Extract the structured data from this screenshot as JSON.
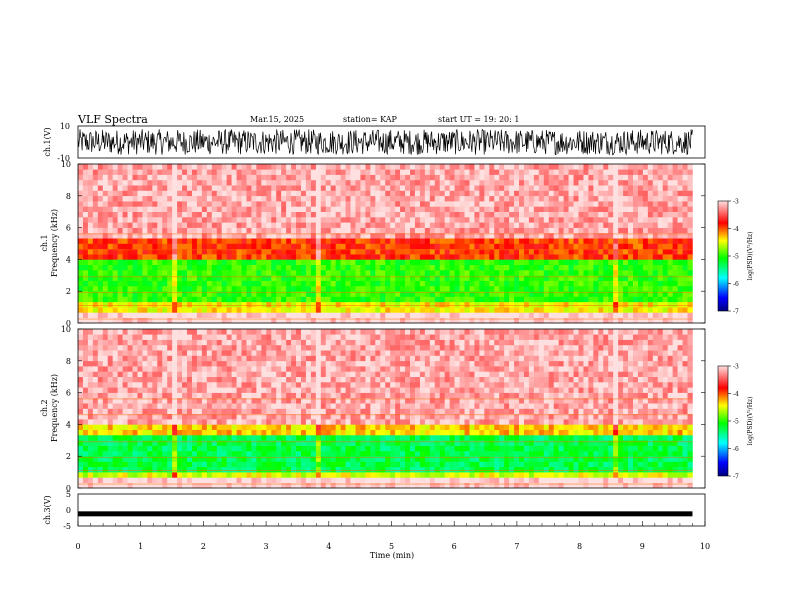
{
  "header": {
    "title": "VLF Spectra",
    "date": "Mar.15, 2025",
    "station": "station= KAP",
    "start": "start  UT  =   19: 20: 1"
  },
  "chart_data": [
    {
      "type": "line",
      "panel": "ch1-waveform",
      "ylabel": "ch.1(V)",
      "ylim": [
        -10,
        10
      ],
      "yticks": [
        "10",
        "-10"
      ],
      "xlim": [
        0,
        10
      ],
      "note_values": "dense black oscillating trace filling roughly -8 to +8 V across 0-9.8 min"
    },
    {
      "type": "heatmap",
      "panel": "ch1-spectrogram",
      "ylabel": "Frequency  (kHz)",
      "channel_label": "ch.1",
      "ylim": [
        0,
        10
      ],
      "yticks": [
        "0",
        "2",
        "4",
        "6",
        "8",
        "10"
      ],
      "xlim": [
        0,
        10
      ],
      "bands": [
        {
          "from": 0.0,
          "to": 0.6,
          "level": -3.0
        },
        {
          "from": 0.6,
          "to": 1.5,
          "level": -4.4
        },
        {
          "from": 1.5,
          "to": 4.0,
          "level": -5.0
        },
        {
          "from": 4.0,
          "to": 5.2,
          "level": -3.9
        },
        {
          "from": 5.2,
          "to": 10.0,
          "level": -3.2
        }
      ],
      "colorbar": {
        "min": -7,
        "max": -3,
        "ticks": [
          "-3",
          "-4",
          "-5",
          "-6",
          "-7"
        ],
        "label": "log(PSD)(V²/Hz)"
      }
    },
    {
      "type": "heatmap",
      "panel": "ch2-spectrogram",
      "ylabel": "Frequency  (kHz)",
      "channel_label": "ch.2",
      "ylim": [
        0,
        10
      ],
      "yticks": [
        "0",
        "2",
        "4",
        "6",
        "8",
        "10"
      ],
      "xlim": [
        0,
        10
      ],
      "bands": [
        {
          "from": 0.0,
          "to": 0.6,
          "level": -3.0
        },
        {
          "from": 0.6,
          "to": 1.0,
          "level": -4.5
        },
        {
          "from": 1.0,
          "to": 3.3,
          "level": -5.3
        },
        {
          "from": 3.3,
          "to": 4.1,
          "level": -4.3
        },
        {
          "from": 4.1,
          "to": 10.0,
          "level": -3.2
        }
      ],
      "colorbar": {
        "min": -7,
        "max": -3,
        "ticks": [
          "-3",
          "-4",
          "-5",
          "-6",
          "-7"
        ],
        "label": "log(PSD)(V²/Hz)"
      }
    },
    {
      "type": "line",
      "panel": "ch3-waveform",
      "ylabel": "ch.3(V)",
      "ylim": [
        -5,
        5
      ],
      "yticks": [
        "5",
        "0",
        "-5"
      ],
      "xlim": [
        0,
        10
      ],
      "level": -1.2,
      "xlabel": "Time  (min)",
      "xticks": [
        "0",
        "1",
        "2",
        "3",
        "4",
        "5",
        "6",
        "7",
        "8",
        "9",
        "10"
      ]
    }
  ],
  "colors": {
    "scale": [
      "#00007f",
      "#0000ff",
      "#00ffff",
      "#00ff00",
      "#ffff00",
      "#ff0000",
      "#ffe0e0"
    ],
    "axis": "#000000"
  }
}
